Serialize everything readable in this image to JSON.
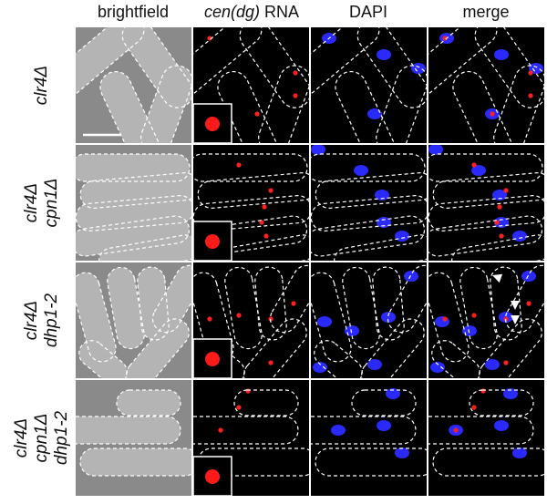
{
  "header": {
    "columns": [
      {
        "text": "brightfield"
      },
      {
        "italic": "cen(dg)",
        "plain": "RNA"
      },
      {
        "text": "DAPI"
      },
      {
        "text": "merge"
      }
    ]
  },
  "rows": [
    {
      "label_lines": [
        "clr4Δ"
      ]
    },
    {
      "label_lines": [
        "clr4Δ",
        "cpn1Δ"
      ]
    },
    {
      "label_lines": [
        "clr4Δ",
        "dhp1-2"
      ]
    },
    {
      "label_lines": [
        "clr4Δ",
        "cpn1Δ",
        "dhp1-2"
      ]
    }
  ]
}
